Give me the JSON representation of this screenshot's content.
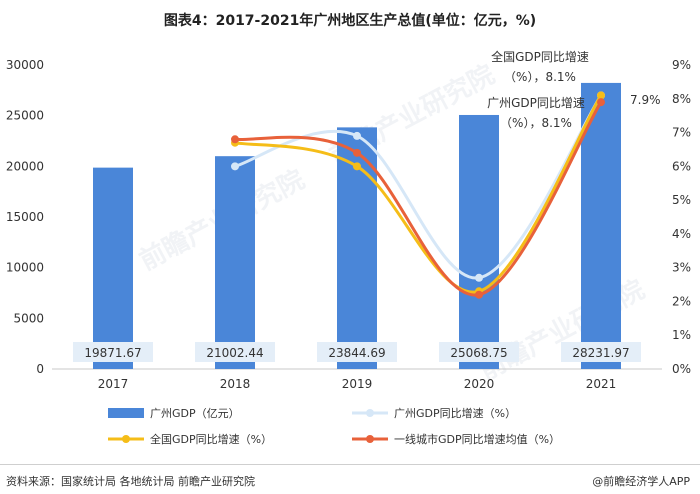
{
  "title": "图表4：2017-2021年广州地区生产总值(单位：亿元，%)",
  "footer": {
    "source": "资料来源：国家统计局 各地统计局 前瞻产业研究院",
    "brand": "@前瞻经济学人APP"
  },
  "watermark": "前瞻产业研究院",
  "colors": {
    "bar": "#4a86d8",
    "gz_growth": "#d6e7f7",
    "national_growth": "#f5bd18",
    "tier1_growth": "#e8613a",
    "label_box": "#e4eef8"
  },
  "chart_data": {
    "type": "bar",
    "title": "图表4：2017-2021年广州地区生产总值(单位：亿元，%)",
    "categories": [
      "2017",
      "2018",
      "2019",
      "2020",
      "2021"
    ],
    "bar_values": [
      19871.67,
      21002.44,
      23844.69,
      25068.75,
      28231.97
    ],
    "bar_value_labels": [
      "19871.67",
      "21002.44",
      "23844.69",
      "25068.75",
      "28231.97"
    ],
    "y_left": {
      "lim": [
        0,
        30000
      ],
      "ticks": [
        "0",
        "5000",
        "10000",
        "15000",
        "20000",
        "25000",
        "30000"
      ]
    },
    "y_right": {
      "lim": [
        0,
        9
      ],
      "ticks": [
        "0%",
        "1%",
        "2%",
        "3%",
        "4%",
        "5%",
        "6%",
        "7%",
        "8%",
        "9%"
      ]
    },
    "series": [
      {
        "name": "广州GDP（亿元）",
        "type": "bar",
        "axis": "left",
        "values": [
          19871.67,
          21002.44,
          23844.69,
          25068.75,
          28231.97
        ]
      },
      {
        "name": "广州GDP同比增速（%）",
        "type": "line",
        "axis": "right",
        "values": [
          null,
          6.0,
          6.9,
          2.7,
          8.1
        ]
      },
      {
        "name": "全国GDP同比增速（%）",
        "type": "line",
        "axis": "right",
        "values": [
          null,
          6.7,
          6.0,
          2.3,
          8.1
        ]
      },
      {
        "name": "一线城市GDP同比增速均值（%）",
        "type": "line",
        "axis": "right",
        "values": [
          null,
          6.8,
          6.4,
          2.2,
          7.9
        ]
      }
    ],
    "annotations": [
      {
        "line1": "全国GDP同比增速",
        "line2": "（%），8.1%"
      },
      {
        "line1": "广州GDP同比增速",
        "line2": "（%），8.1%"
      },
      {
        "text": "7.9%"
      }
    ],
    "legend": [
      "广州GDP（亿元）",
      "广州GDP同比增速（%）",
      "全国GDP同比增速（%）",
      "一线城市GDP同比增速均值（%）"
    ]
  }
}
